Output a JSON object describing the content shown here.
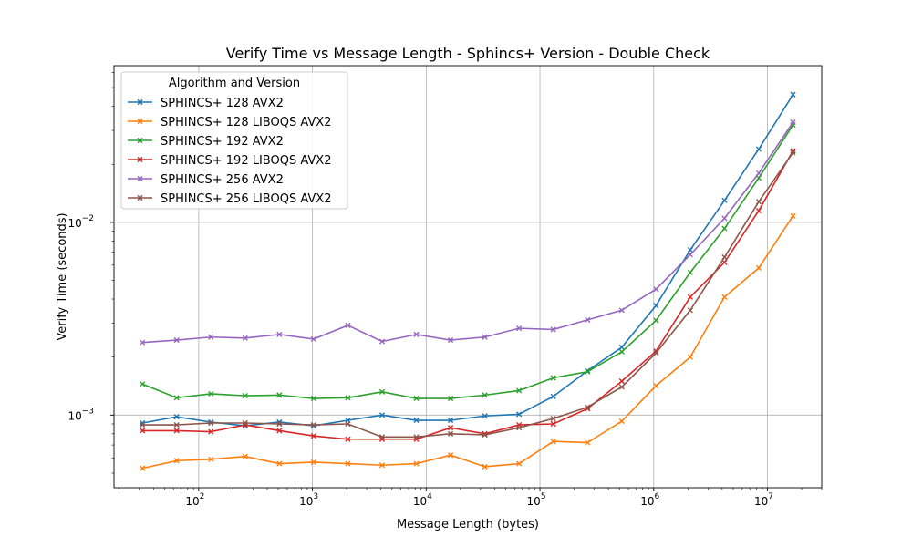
{
  "chart_data": {
    "type": "line",
    "title": "Verify Time vs Message Length - Sphincs+ Version - Double Check",
    "xlabel": "Message Length (bytes)",
    "ylabel": "Verify Time (seconds)",
    "xscale": "log",
    "yscale": "log",
    "xlim": [
      18,
      30000000
    ],
    "ylim": [
      0.00042,
      0.065
    ],
    "grid": true,
    "legend": {
      "title": "Algorithm and Version",
      "position": "upper-left"
    },
    "x_ticks": [
      {
        "base": "10",
        "exp": "2"
      },
      {
        "base": "10",
        "exp": "3"
      },
      {
        "base": "10",
        "exp": "4"
      },
      {
        "base": "10",
        "exp": "5"
      },
      {
        "base": "10",
        "exp": "6"
      },
      {
        "base": "10",
        "exp": "7"
      }
    ],
    "y_ticks": [
      {
        "base": "10",
        "exp": "−3"
      },
      {
        "base": "10",
        "exp": "−2"
      }
    ],
    "x": [
      32,
      64,
      128,
      256,
      512,
      1024,
      2048,
      4096,
      8192,
      16384,
      32768,
      65536,
      131072,
      262144,
      524288,
      1048576,
      2097152,
      4194304,
      8388608,
      16777216
    ],
    "series": [
      {
        "name": "SPHINCS+ 128 AVX2",
        "color": "#1f77b4",
        "values": [
          0.00091,
          0.00098,
          0.00092,
          0.00088,
          0.00092,
          0.00088,
          0.00094,
          0.001,
          0.00094,
          0.00094,
          0.00099,
          0.00101,
          0.00125,
          0.0017,
          0.00225,
          0.0037,
          0.0072,
          0.013,
          0.024,
          0.046
        ]
      },
      {
        "name": "SPHINCS+ 128 LIBOQS AVX2",
        "color": "#ff7f0e",
        "values": [
          0.00053,
          0.00058,
          0.00059,
          0.00061,
          0.00056,
          0.00057,
          0.00056,
          0.00055,
          0.00056,
          0.00062,
          0.00054,
          0.00056,
          0.00073,
          0.00072,
          0.00093,
          0.00142,
          0.002,
          0.0041,
          0.0058,
          0.0108
        ]
      },
      {
        "name": "SPHINCS+ 192 AVX2",
        "color": "#2ca02c",
        "values": [
          0.00145,
          0.00123,
          0.00129,
          0.00126,
          0.00127,
          0.00122,
          0.00123,
          0.00132,
          0.00122,
          0.00122,
          0.00127,
          0.00134,
          0.00156,
          0.00168,
          0.00213,
          0.0031,
          0.0055,
          0.0093,
          0.017,
          0.032
        ]
      },
      {
        "name": "SPHINCS+ 192 LIBOQS AVX2",
        "color": "#d62728",
        "values": [
          0.00083,
          0.00083,
          0.00082,
          0.00089,
          0.00083,
          0.00078,
          0.00075,
          0.00075,
          0.00075,
          0.00086,
          0.0008,
          0.00089,
          0.0009,
          0.00108,
          0.0015,
          0.00215,
          0.0041,
          0.0062,
          0.0115,
          0.0235
        ]
      },
      {
        "name": "SPHINCS+ 256 AVX2",
        "color": "#9467bd",
        "values": [
          0.00238,
          0.00245,
          0.00254,
          0.00251,
          0.00262,
          0.00248,
          0.00292,
          0.00241,
          0.00262,
          0.00245,
          0.00254,
          0.00282,
          0.00278,
          0.00312,
          0.0035,
          0.0045,
          0.0068,
          0.0105,
          0.018,
          0.033
        ]
      },
      {
        "name": "SPHINCS+ 256 LIBOQS AVX2",
        "color": "#8c564b",
        "values": [
          0.00089,
          0.00089,
          0.00091,
          0.00091,
          0.0009,
          0.00089,
          0.0009,
          0.00077,
          0.00077,
          0.0008,
          0.00079,
          0.00086,
          0.00096,
          0.0011,
          0.0014,
          0.0021,
          0.0035,
          0.0066,
          0.0128,
          0.023
        ]
      }
    ]
  }
}
